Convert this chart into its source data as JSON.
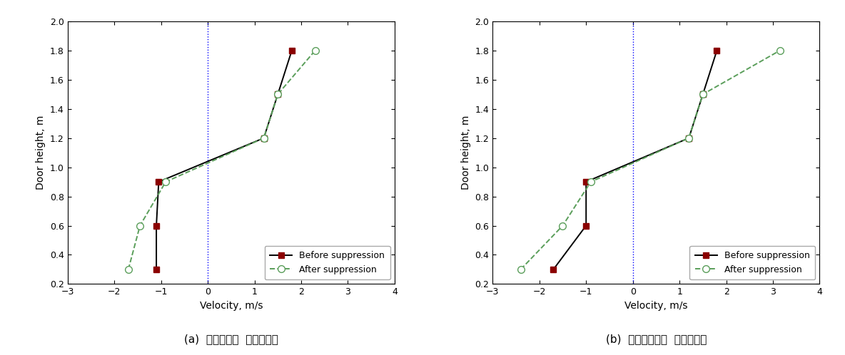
{
  "panel_a": {
    "title": "(a)  워터미스트  소화시스템",
    "before_velocity": [
      -1.1,
      -1.1,
      -1.05,
      1.2,
      1.5,
      1.8
    ],
    "before_height": [
      0.3,
      0.6,
      0.9,
      1.2,
      1.5,
      1.8
    ],
    "after_velocity": [
      -1.7,
      -1.45,
      -0.9,
      1.2,
      1.5,
      2.3
    ],
    "after_height": [
      0.3,
      0.6,
      0.9,
      1.2,
      1.5,
      1.8
    ]
  },
  "panel_b": {
    "title": "(b)  청정소화약제  소화시스템",
    "before_velocity": [
      -1.7,
      -1.0,
      -1.0,
      1.2,
      1.5,
      1.8
    ],
    "before_height": [
      0.3,
      0.6,
      0.9,
      1.2,
      1.5,
      1.8
    ],
    "after_velocity": [
      -2.4,
      -1.5,
      -0.9,
      1.2,
      1.5,
      3.15
    ],
    "after_height": [
      0.3,
      0.6,
      0.9,
      1.2,
      1.5,
      1.8
    ]
  },
  "xlim": [
    -3,
    4
  ],
  "ylim": [
    0.2,
    2.0
  ],
  "xticks": [
    -3,
    -2,
    -1,
    0,
    1,
    2,
    3,
    4
  ],
  "yticks": [
    0.2,
    0.4,
    0.6,
    0.8,
    1.0,
    1.2,
    1.4,
    1.6,
    1.8,
    2.0
  ],
  "xlabel": "Velocity, m/s",
  "ylabel": "Door height, m",
  "vline_x": 0,
  "before_color": "#8B0000",
  "after_color": "#5a9e5a",
  "legend_before": "Before suppression",
  "legend_after": "After suppression",
  "figsize": [
    11.84,
    4.98
  ],
  "dpi": 100
}
